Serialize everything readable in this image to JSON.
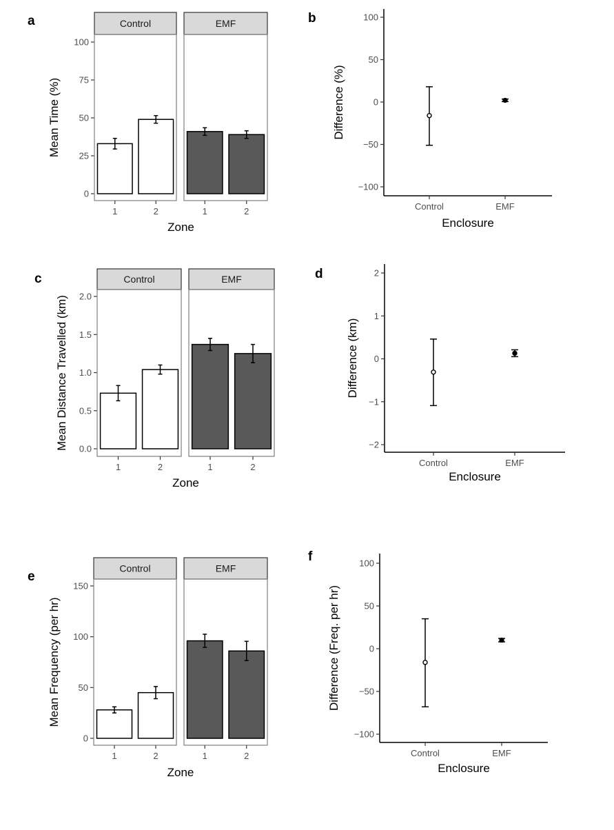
{
  "colors": {
    "control_bar": "#ffffff",
    "emf_bar": "#595959",
    "strip_fill": "#d9d9d9",
    "strip_border": "#333333",
    "panel_border": "#7f7f7f",
    "axis": "#000000",
    "text": "#000000"
  },
  "chart_data": [
    {
      "id": "a",
      "panel_label": "a",
      "type": "bar",
      "facets": [
        "Control",
        "EMF"
      ],
      "categories": [
        "1",
        "2"
      ],
      "series": [
        {
          "name": "Control",
          "values": [
            33,
            49
          ],
          "err": [
            3.5,
            2.5
          ]
        },
        {
          "name": "EMF",
          "values": [
            41,
            39
          ],
          "err": [
            2.5,
            2.5
          ]
        }
      ],
      "xlabel": "Zone",
      "ylabel": "Mean Time (%)",
      "ylim": [
        0,
        100
      ],
      "yticks": [
        0,
        25,
        50,
        75,
        100
      ],
      "ytick_labels": [
        "0",
        "25",
        "50",
        "75",
        "100"
      ]
    },
    {
      "id": "b",
      "panel_label": "b",
      "type": "scatter",
      "categories": [
        "Control",
        "EMF"
      ],
      "points": [
        {
          "name": "Control",
          "value": -16,
          "lower": -51,
          "upper": 18,
          "filled": false
        },
        {
          "name": "EMF",
          "value": 2,
          "lower": 0.5,
          "upper": 3.5,
          "filled": true
        }
      ],
      "xlabel": "Enclosure",
      "ylabel": "Difference (%)",
      "ylim": [
        -110,
        110
      ],
      "yticks": [
        -100,
        -50,
        0,
        50,
        100
      ],
      "ytick_labels": [
        "−100",
        "−50",
        "0",
        "50",
        "100"
      ]
    },
    {
      "id": "c",
      "panel_label": "c",
      "type": "bar",
      "facets": [
        "Control",
        "EMF"
      ],
      "categories": [
        "1",
        "2"
      ],
      "series": [
        {
          "name": "Control",
          "values": [
            0.73,
            1.04
          ],
          "err": [
            0.1,
            0.06
          ]
        },
        {
          "name": "EMF",
          "values": [
            1.37,
            1.25
          ],
          "err": [
            0.08,
            0.12
          ]
        }
      ],
      "xlabel": "Zone",
      "ylabel": "Mean Distance Travelled (km)",
      "ylim": [
        0,
        2
      ],
      "yticks": [
        0,
        0.5,
        1,
        1.5,
        2
      ],
      "ytick_labels": [
        "0.0",
        "0.5",
        "1.0",
        "1.5",
        "2.0"
      ]
    },
    {
      "id": "d",
      "panel_label": "d",
      "type": "scatter",
      "categories": [
        "Control",
        "EMF"
      ],
      "points": [
        {
          "name": "Control",
          "value": -0.31,
          "lower": -1.09,
          "upper": 0.46,
          "filled": false
        },
        {
          "name": "EMF",
          "value": 0.13,
          "lower": 0.05,
          "upper": 0.21,
          "filled": true
        }
      ],
      "xlabel": "Enclosure",
      "ylabel": "Difference (km)",
      "ylim": [
        -2.2,
        2.2
      ],
      "yticks": [
        -2,
        -1,
        0,
        1,
        2
      ],
      "ytick_labels": [
        "−2",
        "−1",
        "0",
        "1",
        "2"
      ]
    },
    {
      "id": "e",
      "panel_label": "e",
      "type": "bar",
      "facets": [
        "Control",
        "EMF"
      ],
      "categories": [
        "1",
        "2"
      ],
      "series": [
        {
          "name": "Control",
          "values": [
            28,
            45
          ],
          "err": [
            3,
            6
          ]
        },
        {
          "name": "EMF",
          "values": [
            96,
            86
          ],
          "err": [
            6.5,
            9.5
          ]
        }
      ],
      "xlabel": "Zone",
      "ylabel": "Mean Frequency (per hr)",
      "ylim": [
        0,
        150
      ],
      "yticks": [
        0,
        50,
        100,
        150
      ],
      "ytick_labels": [
        "0",
        "50",
        "100",
        "150"
      ]
    },
    {
      "id": "f",
      "panel_label": "f",
      "type": "scatter",
      "categories": [
        "Control",
        "EMF"
      ],
      "points": [
        {
          "name": "Control",
          "value": -16,
          "lower": -68,
          "upper": 35,
          "filled": false
        },
        {
          "name": "EMF",
          "value": 10,
          "lower": 8,
          "upper": 12,
          "filled": true
        }
      ],
      "xlabel": "Enclosure",
      "ylabel": "Difference (Freq. per hr)",
      "ylim": [
        -110,
        110
      ],
      "yticks": [
        -100,
        -50,
        0,
        50,
        100
      ],
      "ytick_labels": [
        "−100",
        "−50",
        "0",
        "50",
        "100"
      ]
    }
  ]
}
